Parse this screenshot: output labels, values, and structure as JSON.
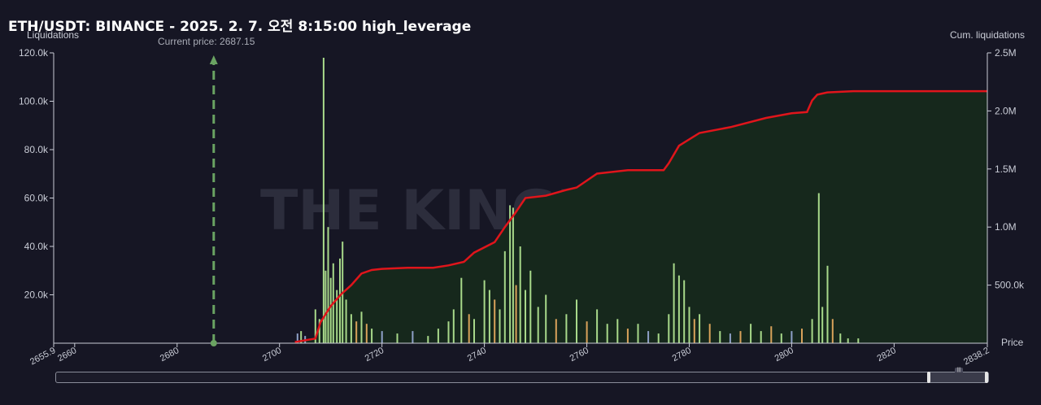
{
  "title": "ETH/USDT: BINANCE - 2025. 2. 7. 오전 8:15:00 high_leverage",
  "left_axis_title": "Liquidations",
  "right_axis_title": "Cum. liquidations",
  "price_axis_title": "Price",
  "current_price_label": "Current price: 2687.15",
  "watermark": "THE KINGFISHER.io",
  "colors": {
    "background": "#161624",
    "bar_green": "#a8d98a",
    "bar_orange": "#d9a25a",
    "bar_blue": "#8fa0c8",
    "cum_line": "#e0151b",
    "cum_area": "#16281c",
    "current_price": "#6aa362"
  },
  "chart_data": {
    "type": "bar",
    "xlim": [
      2655.9,
      2838.2
    ],
    "x_ticks": [
      "2655.9",
      "2660",
      "2680",
      "2700",
      "2720",
      "2740",
      "2760",
      "2780",
      "2800",
      "2820",
      "2838.2"
    ],
    "y_left_ticks": [
      "20.0k",
      "40.0k",
      "60.0k",
      "80.0k",
      "100.0k",
      "120.0k"
    ],
    "y_right_ticks": [
      "500.0k",
      "1.0M",
      "1.5M",
      "2.0M",
      "2.5M"
    ],
    "y_left_lim": [
      0,
      120000
    ],
    "y_right_lim": [
      0,
      2500000
    ],
    "current_price": 2687.15,
    "bars": [
      {
        "price": 2703.5,
        "value": 4000,
        "color": "blue"
      },
      {
        "price": 2704.2,
        "value": 5000,
        "color": "green"
      },
      {
        "price": 2705.0,
        "value": 3000,
        "color": "blue"
      },
      {
        "price": 2707.0,
        "value": 14000,
        "color": "green"
      },
      {
        "price": 2707.8,
        "value": 10000,
        "color": "green"
      },
      {
        "price": 2708.6,
        "value": 118000,
        "color": "green"
      },
      {
        "price": 2709.0,
        "value": 30000,
        "color": "green"
      },
      {
        "price": 2709.5,
        "value": 48000,
        "color": "green"
      },
      {
        "price": 2710.0,
        "value": 27000,
        "color": "green"
      },
      {
        "price": 2710.5,
        "value": 33000,
        "color": "green"
      },
      {
        "price": 2711.2,
        "value": 22000,
        "color": "green"
      },
      {
        "price": 2711.8,
        "value": 35000,
        "color": "green"
      },
      {
        "price": 2712.3,
        "value": 42000,
        "color": "green"
      },
      {
        "price": 2713.0,
        "value": 18000,
        "color": "green"
      },
      {
        "price": 2714.0,
        "value": 12000,
        "color": "green"
      },
      {
        "price": 2715.0,
        "value": 9000,
        "color": "orange"
      },
      {
        "price": 2716.0,
        "value": 13000,
        "color": "green"
      },
      {
        "price": 2717.0,
        "value": 8000,
        "color": "orange"
      },
      {
        "price": 2718.0,
        "value": 6000,
        "color": "green"
      },
      {
        "price": 2720.0,
        "value": 5000,
        "color": "blue"
      },
      {
        "price": 2723.0,
        "value": 4000,
        "color": "green"
      },
      {
        "price": 2726.0,
        "value": 5000,
        "color": "blue"
      },
      {
        "price": 2729.0,
        "value": 3000,
        "color": "green"
      },
      {
        "price": 2731.0,
        "value": 6000,
        "color": "green"
      },
      {
        "price": 2733.0,
        "value": 9000,
        "color": "green"
      },
      {
        "price": 2734.0,
        "value": 14000,
        "color": "green"
      },
      {
        "price": 2735.5,
        "value": 27000,
        "color": "green"
      },
      {
        "price": 2737.0,
        "value": 12000,
        "color": "orange"
      },
      {
        "price": 2738.0,
        "value": 10000,
        "color": "green"
      },
      {
        "price": 2740.0,
        "value": 26000,
        "color": "green"
      },
      {
        "price": 2741.0,
        "value": 22000,
        "color": "green"
      },
      {
        "price": 2742.0,
        "value": 18000,
        "color": "orange"
      },
      {
        "price": 2743.0,
        "value": 14000,
        "color": "green"
      },
      {
        "price": 2744.0,
        "value": 38000,
        "color": "green"
      },
      {
        "price": 2745.0,
        "value": 57000,
        "color": "green"
      },
      {
        "price": 2745.6,
        "value": 56000,
        "color": "green"
      },
      {
        "price": 2746.2,
        "value": 24000,
        "color": "orange"
      },
      {
        "price": 2747.0,
        "value": 40000,
        "color": "green"
      },
      {
        "price": 2748.0,
        "value": 22000,
        "color": "green"
      },
      {
        "price": 2749.0,
        "value": 30000,
        "color": "green"
      },
      {
        "price": 2750.5,
        "value": 15000,
        "color": "green"
      },
      {
        "price": 2752.0,
        "value": 20000,
        "color": "green"
      },
      {
        "price": 2754.0,
        "value": 10000,
        "color": "orange"
      },
      {
        "price": 2756.0,
        "value": 12000,
        "color": "green"
      },
      {
        "price": 2758.0,
        "value": 18000,
        "color": "green"
      },
      {
        "price": 2760.0,
        "value": 9000,
        "color": "orange"
      },
      {
        "price": 2762.0,
        "value": 14000,
        "color": "green"
      },
      {
        "price": 2764.0,
        "value": 8000,
        "color": "green"
      },
      {
        "price": 2766.0,
        "value": 10000,
        "color": "green"
      },
      {
        "price": 2768.0,
        "value": 6000,
        "color": "orange"
      },
      {
        "price": 2770.0,
        "value": 8000,
        "color": "green"
      },
      {
        "price": 2772.0,
        "value": 5000,
        "color": "blue"
      },
      {
        "price": 2774.0,
        "value": 4000,
        "color": "green"
      },
      {
        "price": 2776.0,
        "value": 12000,
        "color": "green"
      },
      {
        "price": 2777.0,
        "value": 33000,
        "color": "green"
      },
      {
        "price": 2778.0,
        "value": 28000,
        "color": "green"
      },
      {
        "price": 2779.0,
        "value": 26000,
        "color": "green"
      },
      {
        "price": 2780.0,
        "value": 15000,
        "color": "green"
      },
      {
        "price": 2781.0,
        "value": 10000,
        "color": "orange"
      },
      {
        "price": 2782.0,
        "value": 12000,
        "color": "green"
      },
      {
        "price": 2784.0,
        "value": 8000,
        "color": "orange"
      },
      {
        "price": 2786.0,
        "value": 5000,
        "color": "green"
      },
      {
        "price": 2788.0,
        "value": 4000,
        "color": "blue"
      },
      {
        "price": 2790.0,
        "value": 5000,
        "color": "orange"
      },
      {
        "price": 2792.0,
        "value": 8000,
        "color": "green"
      },
      {
        "price": 2794.0,
        "value": 5000,
        "color": "green"
      },
      {
        "price": 2796.0,
        "value": 7000,
        "color": "orange"
      },
      {
        "price": 2798.0,
        "value": 4000,
        "color": "green"
      },
      {
        "price": 2800.0,
        "value": 5000,
        "color": "blue"
      },
      {
        "price": 2802.0,
        "value": 6000,
        "color": "orange"
      },
      {
        "price": 2804.0,
        "value": 10000,
        "color": "green"
      },
      {
        "price": 2805.3,
        "value": 62000,
        "color": "green"
      },
      {
        "price": 2806.0,
        "value": 15000,
        "color": "green"
      },
      {
        "price": 2807.0,
        "value": 32000,
        "color": "green"
      },
      {
        "price": 2808.0,
        "value": 10000,
        "color": "orange"
      },
      {
        "price": 2809.5,
        "value": 4000,
        "color": "green"
      },
      {
        "price": 2811.0,
        "value": 2000,
        "color": "green"
      },
      {
        "price": 2813.0,
        "value": 2000,
        "color": "green"
      }
    ],
    "cumulative": {
      "x": [
        2703.0,
        2707.0,
        2708.0,
        2710.0,
        2712.0,
        2714.0,
        2716.0,
        2718.0,
        2720.0,
        2725.0,
        2730.0,
        2733.0,
        2736.0,
        2738.0,
        2742.0,
        2744.0,
        2746.0,
        2748.0,
        2752.0,
        2756.0,
        2758.0,
        2762.0,
        2768.0,
        2775.0,
        2776.0,
        2778.0,
        2782.0,
        2788.0,
        2795.0,
        2800.0,
        2803.0,
        2804.0,
        2805.0,
        2807.0,
        2812.0,
        2838.2
      ],
      "y": [
        10000,
        40000,
        180000,
        320000,
        420000,
        500000,
        600000,
        630000,
        640000,
        650000,
        650000,
        670000,
        700000,
        780000,
        870000,
        1000000,
        1120000,
        1250000,
        1270000,
        1320000,
        1340000,
        1460000,
        1490000,
        1490000,
        1550000,
        1700000,
        1810000,
        1860000,
        1940000,
        1980000,
        1990000,
        2090000,
        2140000,
        2160000,
        2170000,
        2170000
      ]
    }
  }
}
